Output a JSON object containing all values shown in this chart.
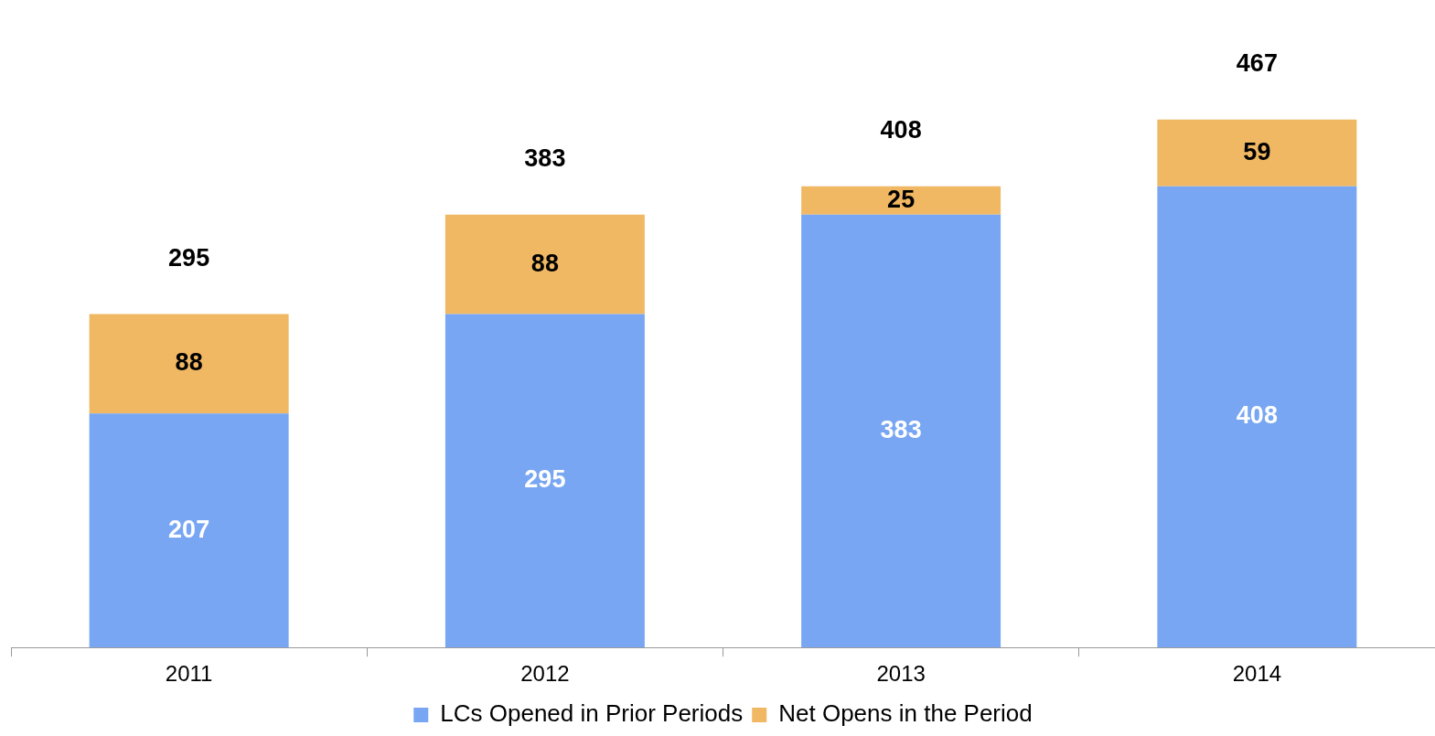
{
  "chart_data": {
    "type": "bar",
    "stacked": true,
    "categories": [
      "2011",
      "2012",
      "2013",
      "2014"
    ],
    "series": [
      {
        "name": "LCs Opened in Prior Periods",
        "color": "#78a6f2",
        "values": [
          207,
          295,
          383,
          408
        ]
      },
      {
        "name": "Net Opens in the Period",
        "color": "#f0b862",
        "values": [
          88,
          88,
          25,
          59
        ]
      }
    ],
    "data_labels": true,
    "totals": [
      "295",
      "383",
      "408",
      "467"
    ],
    "legend": "bottom",
    "grid": false
  }
}
